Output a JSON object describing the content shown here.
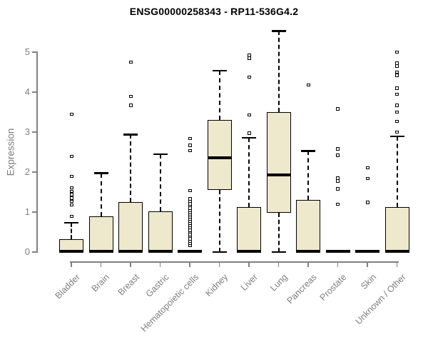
{
  "colors": {
    "background": "#FFFFFF",
    "box_fill": "#EEE8CD",
    "box_border": "#000000",
    "median": "#000000",
    "whisker": "#000000",
    "outlier_fill": "#FFFFFF",
    "axis": "#808080",
    "axis_text": "#7E7E7E",
    "title_text": "#000000"
  },
  "chart_data": {
    "type": "boxplot",
    "title": "ENSG00000258343 - RP11-536G4.2",
    "xlabel": "",
    "ylabel": "Expression",
    "ylim": [
      0,
      5.6
    ],
    "yticks": [
      0,
      1,
      2,
      3,
      4,
      5
    ],
    "grid": false,
    "legend": "none",
    "x_label_rotation_deg": 45,
    "categories": [
      "Bladder",
      "Brain",
      "Breast",
      "Gastric",
      "Hematopoietic cells",
      "Kidney",
      "Liver",
      "Lung",
      "Pancreas",
      "Prostate",
      "Skin",
      "Unknown / Other"
    ],
    "series": [
      {
        "name": "Bladder",
        "q1": 0,
        "median": 0.02,
        "q3": 0.33,
        "whisker_low": 0,
        "whisker_high": 0.73,
        "outliers": [
          0.89,
          1.18,
          1.27,
          1.35,
          1.44,
          1.52,
          1.61,
          1.89,
          2.39,
          3.45
        ]
      },
      {
        "name": "Brain",
        "q1": 0,
        "median": 0.02,
        "q3": 0.9,
        "whisker_low": 0,
        "whisker_high": 1.97,
        "outliers": []
      },
      {
        "name": "Breast",
        "q1": 0,
        "median": 0.02,
        "q3": 1.25,
        "whisker_low": 0,
        "whisker_high": 2.94,
        "outliers": [
          3.67,
          3.89,
          4.75
        ]
      },
      {
        "name": "Gastric",
        "q1": 0,
        "median": 0.02,
        "q3": 1.02,
        "whisker_low": 0,
        "whisker_high": 2.45,
        "outliers": []
      },
      {
        "name": "Hematopoietic cells",
        "q1": 0,
        "median": 0.02,
        "q3": 0.05,
        "whisker_low": 0,
        "whisker_high": 0.05,
        "outliers": [
          0.17,
          0.22,
          0.28,
          0.33,
          0.39,
          0.44,
          0.5,
          0.55,
          0.61,
          0.66,
          0.72,
          0.77,
          0.83,
          0.88,
          0.94,
          0.99,
          1.05,
          1.1,
          1.16,
          1.21,
          1.27,
          1.33,
          1.54,
          2.54,
          2.67,
          2.84
        ]
      },
      {
        "name": "Kidney",
        "q1": 1.55,
        "median": 2.36,
        "q3": 3.31,
        "whisker_low": 0,
        "whisker_high": 4.54,
        "outliers": []
      },
      {
        "name": "Liver",
        "q1": 0,
        "median": 0.02,
        "q3": 1.13,
        "whisker_low": 0,
        "whisker_high": 2.86,
        "outliers": [
          2.97,
          3.43,
          4.38,
          4.85,
          4.92
        ]
      },
      {
        "name": "Lung",
        "q1": 0.98,
        "median": 1.93,
        "q3": 3.5,
        "whisker_low": 0,
        "whisker_high": 5.53,
        "outliers": []
      },
      {
        "name": "Pancreas",
        "q1": 0,
        "median": 0.02,
        "q3": 1.3,
        "whisker_low": 0,
        "whisker_high": 2.53,
        "outliers": [
          4.18
        ]
      },
      {
        "name": "Prostate",
        "q1": 0,
        "median": 0.02,
        "q3": 0.05,
        "whisker_low": 0,
        "whisker_high": 0.05,
        "outliers": [
          1.2,
          1.58,
          1.78,
          1.85,
          2.42,
          2.58,
          3.58
        ]
      },
      {
        "name": "Skin",
        "q1": 0,
        "median": 0.02,
        "q3": 0.05,
        "whisker_low": 0,
        "whisker_high": 0.05,
        "outliers": [
          1.24,
          1.84,
          2.11
        ]
      },
      {
        "name": "Unknown / Other",
        "q1": 0,
        "median": 0.02,
        "q3": 1.13,
        "whisker_low": 0,
        "whisker_high": 2.89,
        "outliers": [
          3.0,
          3.27,
          3.5,
          3.67,
          3.95,
          4.1,
          4.42,
          4.5,
          4.65,
          4.72,
          5.0
        ]
      }
    ]
  }
}
